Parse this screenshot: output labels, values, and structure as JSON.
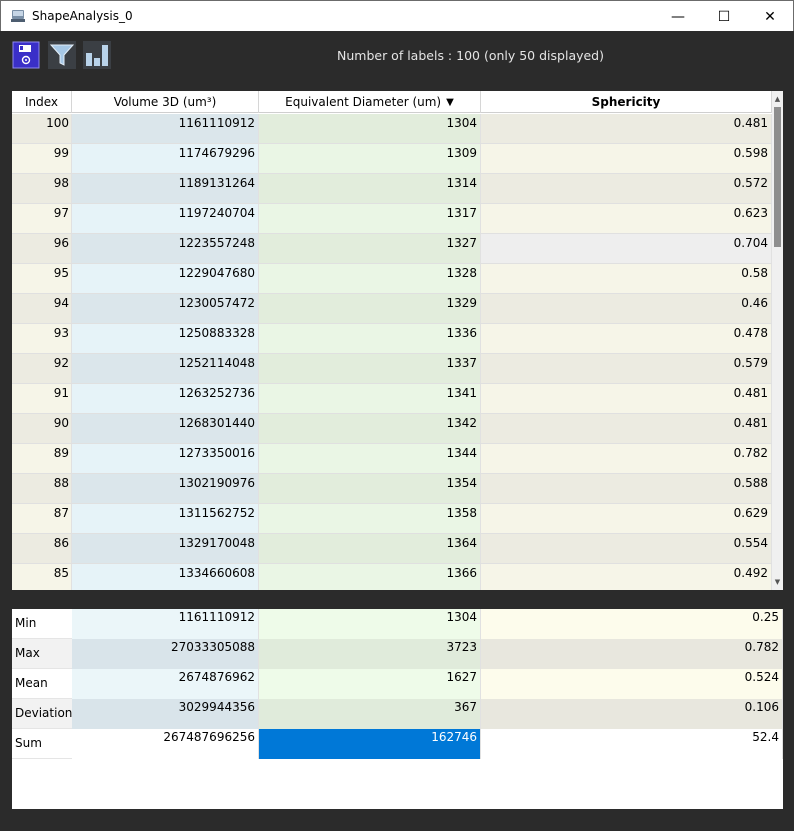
{
  "window": {
    "title": "ShapeAnalysis_0",
    "minimize": "—",
    "maximize": "☐",
    "close": "✕"
  },
  "toolbar": {
    "save_icon": "save-icon",
    "filter_icon": "filter-icon",
    "chart_icon": "bar-chart-icon",
    "labels_info": "Number of labels : 100 (only 50 displayed)"
  },
  "table": {
    "columns": [
      "Index",
      "Volume 3D (um³)",
      "Equivalent Diameter (um)",
      "Sphericity"
    ],
    "sort_indicator": "▼",
    "rows": [
      {
        "index": "100",
        "volume": "1161110912",
        "diameter": "1304",
        "sphericity": "0.481"
      },
      {
        "index": "99",
        "volume": "1174679296",
        "diameter": "1309",
        "sphericity": "0.598"
      },
      {
        "index": "98",
        "volume": "1189131264",
        "diameter": "1314",
        "sphericity": "0.572"
      },
      {
        "index": "97",
        "volume": "1197240704",
        "diameter": "1317",
        "sphericity": "0.623"
      },
      {
        "index": "96",
        "volume": "1223557248",
        "diameter": "1327",
        "sphericity": "0.704"
      },
      {
        "index": "95",
        "volume": "1229047680",
        "diameter": "1328",
        "sphericity": "0.58"
      },
      {
        "index": "94",
        "volume": "1230057472",
        "diameter": "1329",
        "sphericity": "0.46"
      },
      {
        "index": "93",
        "volume": "1250883328",
        "diameter": "1336",
        "sphericity": "0.478"
      },
      {
        "index": "92",
        "volume": "1252114048",
        "diameter": "1337",
        "sphericity": "0.579"
      },
      {
        "index": "91",
        "volume": "1263252736",
        "diameter": "1341",
        "sphericity": "0.481"
      },
      {
        "index": "90",
        "volume": "1268301440",
        "diameter": "1342",
        "sphericity": "0.481"
      },
      {
        "index": "89",
        "volume": "1273350016",
        "diameter": "1344",
        "sphericity": "0.782"
      },
      {
        "index": "88",
        "volume": "1302190976",
        "diameter": "1354",
        "sphericity": "0.588"
      },
      {
        "index": "87",
        "volume": "1311562752",
        "diameter": "1358",
        "sphericity": "0.629"
      },
      {
        "index": "86",
        "volume": "1329170048",
        "diameter": "1364",
        "sphericity": "0.554"
      },
      {
        "index": "85",
        "volume": "1334660608",
        "diameter": "1366",
        "sphericity": "0.492"
      }
    ]
  },
  "stats": {
    "rows": [
      {
        "label": "Min",
        "volume": "1161110912",
        "diameter": "1304",
        "sphericity": "0.25"
      },
      {
        "label": "Max",
        "volume": "27033305088",
        "diameter": "3723",
        "sphericity": "0.782"
      },
      {
        "label": "Mean",
        "volume": "2674876962",
        "diameter": "1627",
        "sphericity": "0.524"
      },
      {
        "label": "Deviation",
        "volume": "3029944356",
        "diameter": "367",
        "sphericity": "0.106"
      },
      {
        "label": "Sum",
        "volume": "267487696256",
        "diameter": "162746",
        "sphericity": "52.4"
      }
    ],
    "selected_color": "#0078d7"
  },
  "scrollbar": {
    "up": "▲",
    "down": "▼"
  }
}
